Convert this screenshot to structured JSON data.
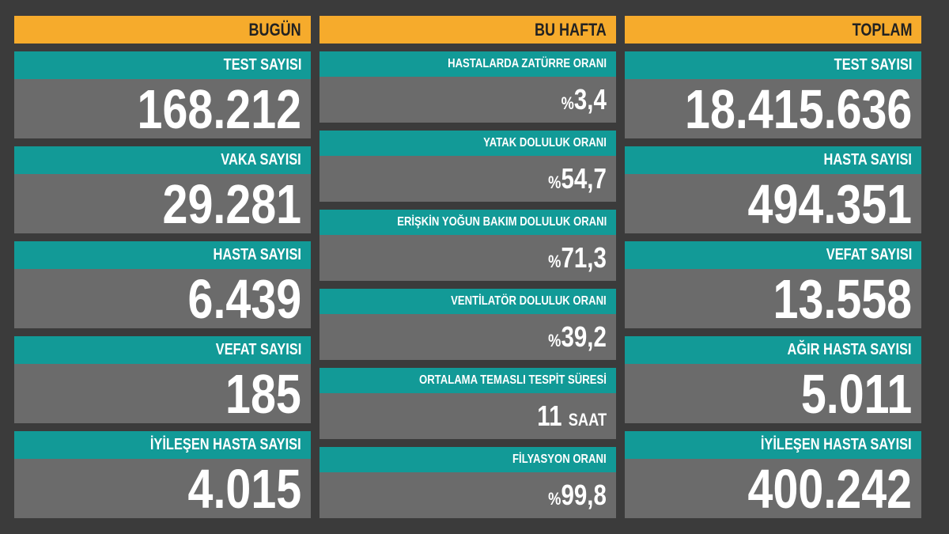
{
  "columns": [
    {
      "header": "BUGÜN",
      "items": [
        {
          "label": "TEST SAYISI",
          "value": "168.212"
        },
        {
          "label": "VAKA SAYISI",
          "value": "29.281"
        },
        {
          "label": "HASTA SAYISI",
          "value": "6.439"
        },
        {
          "label": "VEFAT SAYISI",
          "value": "185"
        },
        {
          "label": "İYİLEŞEN HASTA SAYISI",
          "value": "4.015"
        }
      ]
    },
    {
      "header": "BU HAFTA",
      "items": [
        {
          "label": "HASTALARDA ZATÜRRE ORANI",
          "prefix": "%",
          "value": "3,4"
        },
        {
          "label": "YATAK DOLULUK ORANI",
          "prefix": "%",
          "value": "54,7"
        },
        {
          "label": "ERİŞKİN YOĞUN BAKIM DOLULUK ORANI",
          "prefix": "%",
          "value": "71,3"
        },
        {
          "label": "VENTİLATÖR DOLULUK ORANI",
          "prefix": "%",
          "value": "39,2"
        },
        {
          "label": "ORTALAMA TEMASLI TESPİT SÜRESİ",
          "value": "11",
          "suffix": "SAAT"
        },
        {
          "label": "FİLYASYON ORANI",
          "prefix": "%",
          "value": "99,8"
        }
      ]
    },
    {
      "header": "TOPLAM",
      "items": [
        {
          "label": "TEST SAYISI",
          "value": "18.415.636"
        },
        {
          "label": "HASTA SAYISI",
          "value": "494.351"
        },
        {
          "label": "VEFAT SAYISI",
          "value": "13.558"
        },
        {
          "label": "AĞIR HASTA SAYISI",
          "value": "5.011"
        },
        {
          "label": "İYİLEŞEN HASTA SAYISI",
          "value": "400.242"
        }
      ]
    }
  ]
}
